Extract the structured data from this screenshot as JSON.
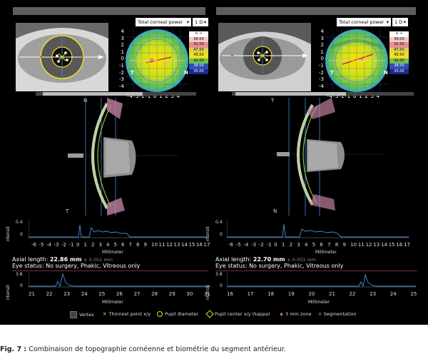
{
  "left": {
    "map_dropdown": "Total corneal power",
    "step_dropdown": "1 D",
    "colorbar": [
      "≥ ∞",
      "58.00",
      "52.50",
      "47.50",
      "45.50",
      "42.00",
      "38.50",
      "35.00"
    ],
    "map_y_ticks": [
      "4",
      "3",
      "2",
      "1",
      "0",
      "-1",
      "-2",
      "-3",
      "-4"
    ],
    "map_x_ticks": "-4-3-2-1 0 1 2 3 4",
    "map_letters": [
      "T",
      "N"
    ],
    "oct_top_letter": "N",
    "oct_bottom_letter": "T",
    "intensity_label": "ntensit",
    "intensity_ticks": [
      "0.4",
      "0"
    ],
    "mm_ticks": [
      "-6",
      "-5",
      "-4",
      "-3",
      "-2",
      "-1",
      "0",
      "1",
      "2",
      "3",
      "4",
      "5",
      "6",
      "7",
      "8",
      "9",
      "10",
      "11",
      "12",
      "13",
      "14",
      "15",
      "16",
      "17"
    ],
    "mm_label": "Millimeter",
    "axial_label": "Axial length:",
    "axial_value": "22.86 mm",
    "axial_sd": "± 0.001 mm",
    "eye_status": "Eye status: No surgery, Phakic, Vitreous only",
    "axial_plot_ticks": [
      "3.8",
      "0"
    ],
    "axial_x_ticks": [
      "21",
      "22",
      "23",
      "24",
      "25",
      "26",
      "27",
      "28",
      "29",
      "30",
      "31"
    ],
    "axial_x_label": "Millimeter"
  },
  "right": {
    "map_dropdown": "Total corneal power",
    "step_dropdown": "1 D",
    "colorbar": [
      "≥ ∞",
      "58.00",
      "52.50",
      "47.50",
      "45.50",
      "42.00",
      "38.50",
      "35.00"
    ],
    "map_y_ticks": [
      "4",
      "3",
      "2",
      "1",
      "0",
      "-1",
      "-2",
      "-3",
      "-4"
    ],
    "map_x_ticks": "-4-3-2-1 0 1 2 3 4",
    "map_letters": [
      "T",
      "N"
    ],
    "oct_top_letter": "T",
    "oct_bottom_letter": "N",
    "intensity_label": "ntensit",
    "intensity_ticks": [
      "0.4",
      "0"
    ],
    "mm_ticks": [
      "-6",
      "-5",
      "-4",
      "-3",
      "-2",
      "-1",
      "0",
      "1",
      "2",
      "3",
      "4",
      "5",
      "6",
      "7",
      "8",
      "9",
      "10",
      "11",
      "12",
      "13",
      "14",
      "15",
      "16",
      "17"
    ],
    "mm_label": "Millimeter",
    "axial_label": "Axial length:",
    "axial_value": "22.70 mm",
    "axial_sd": "± 0.003 mm",
    "eye_status": "Eye status: No surgery, Phakic, Vitreous only",
    "axial_plot_ticks": [
      "3.8",
      "0"
    ],
    "axial_x_ticks": [
      "16",
      "17",
      "18",
      "19",
      "20",
      "21",
      "22",
      "23",
      "24",
      "25"
    ],
    "axial_x_label": "Millimeter"
  },
  "legend": [
    {
      "label": "Vertex",
      "icon": "vertex-square",
      "color": "#444444"
    },
    {
      "label": "Thinnest point x/y",
      "icon": "x-marker",
      "color": "#f0e020"
    },
    {
      "label": "Pupil diameter",
      "icon": "circle-marker",
      "color": "#f0e020"
    },
    {
      "label": "Pupil center x/y (kappa)",
      "icon": "diamond-marker",
      "color": "#f0e020"
    },
    {
      "label": "3 mm zone",
      "icon": "zone-marker",
      "color": "#d06080"
    },
    {
      "label": "Segmentation",
      "icon": "segmentation-marker",
      "color": "#a0e040"
    }
  ],
  "caption": {
    "prefix": "Fig. 7 :",
    "text": " Combinaison de topographie cornéenne et biométrie du segment antérieur."
  },
  "colors": {
    "background": "#000000",
    "header_bar": "#5e5e5e",
    "segmentation": "#a0e040",
    "yellow_marker": "#f0e020",
    "axis_line": "#4a8cd6"
  }
}
